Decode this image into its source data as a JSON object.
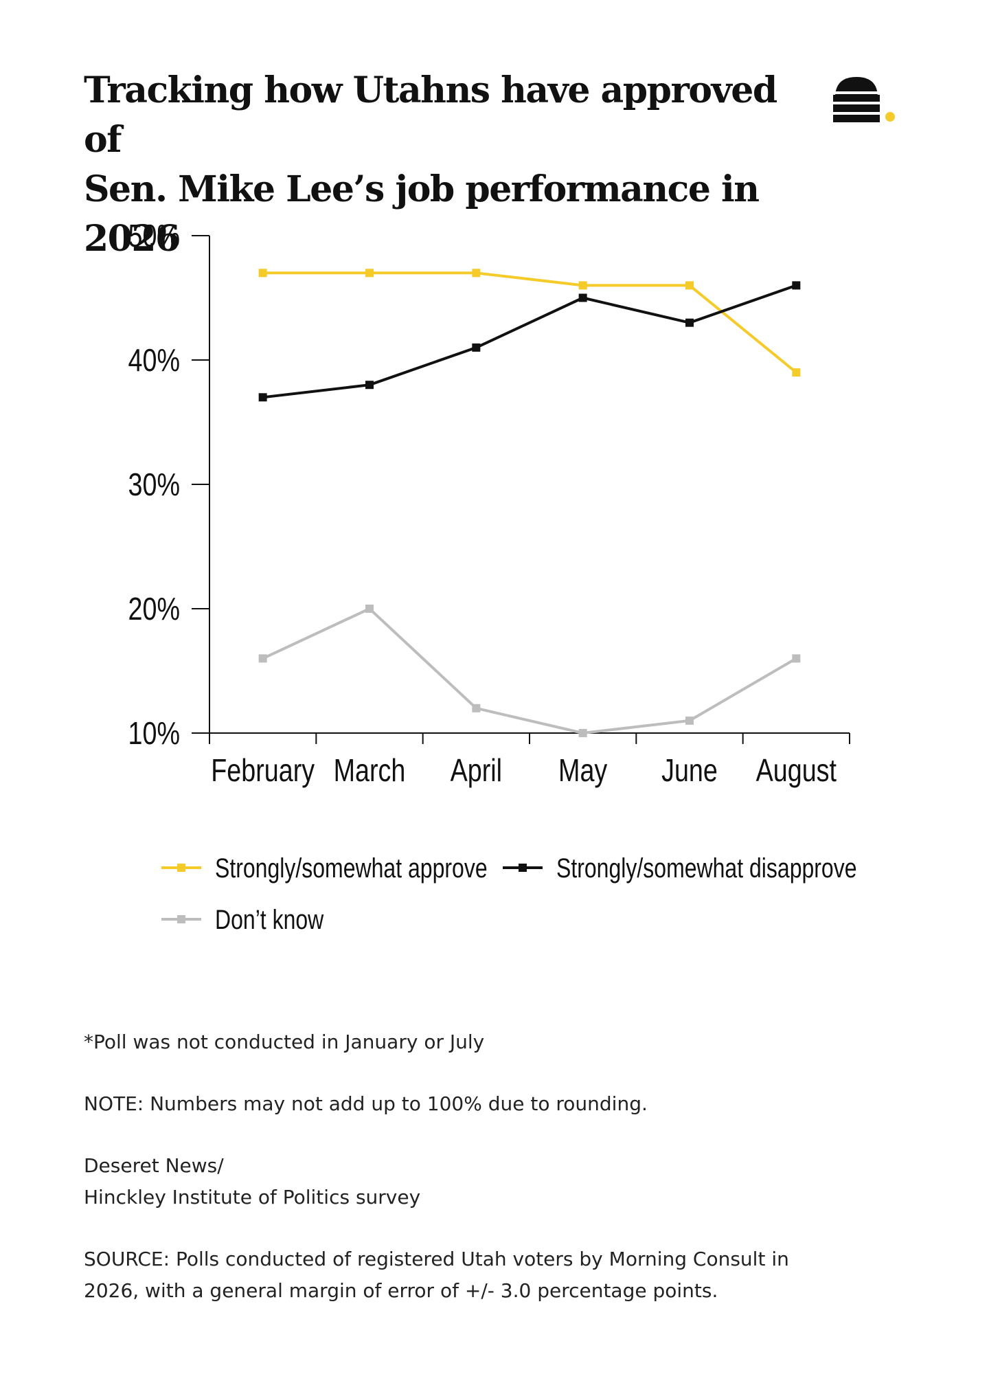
{
  "chart_data": {
    "type": "line",
    "title": [
      "Tracking how Utahns have approved of",
      "Sen. Mike Lee’s job performance in 2026"
    ],
    "categories": [
      "February",
      "March",
      "April",
      "May",
      "June",
      "August"
    ],
    "yticks": [
      "10%",
      "20%",
      "30%",
      "40%",
      "50%"
    ],
    "ylim": [
      10,
      50
    ],
    "grid": false,
    "legend_position": "bottom",
    "series": [
      {
        "name": "Strongly/somewhat approve",
        "color": "#F5CB2A",
        "values": [
          47,
          47,
          47,
          46,
          46,
          39
        ]
      },
      {
        "name": "Strongly/somewhat disapprove",
        "color": "#111111",
        "values": [
          37,
          38,
          41,
          45,
          43,
          46
        ]
      },
      {
        "name": "Don’t know",
        "color": "#BDBDBD",
        "values": [
          16,
          20,
          12,
          10,
          11,
          16
        ]
      }
    ]
  },
  "logo": {
    "icon": "beehive-icon",
    "dot_color": "#F5CB2A"
  },
  "notes": {
    "poll_note": "*Poll was not conducted in January or July",
    "rounding_note": "NOTE: Numbers may not add up to 100% due to rounding.",
    "credit_line1": "Deseret News/",
    "credit_line2": "Hinckley Institute of Politics survey",
    "source_line1": "SOURCE: Polls conducted of registered Utah voters by Morning Consult in",
    "source_line2": "2026, with a general margin of error of +/- 3.0 percentage points."
  }
}
